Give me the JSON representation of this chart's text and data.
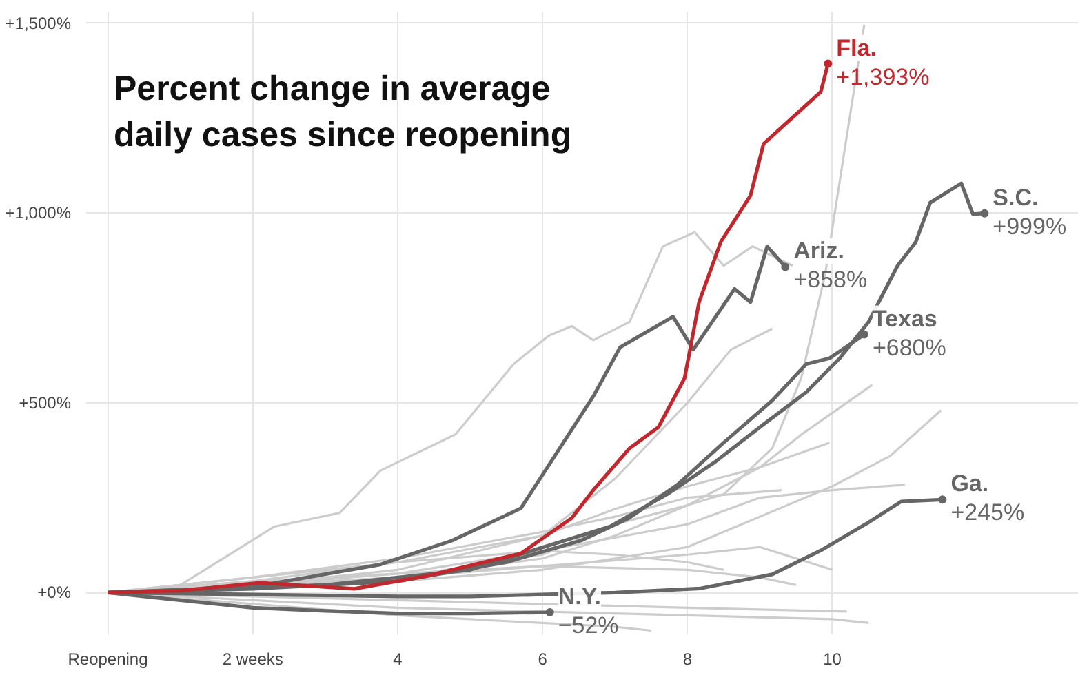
{
  "chart_data": {
    "type": "line",
    "title": "Percent change in average daily cases since reopening",
    "xlim": [
      -0.3,
      13.4
    ],
    "ylim": [
      -110,
      1530
    ],
    "xticks": [
      {
        "value": 0,
        "label": "Reopening"
      },
      {
        "value": 2,
        "label": "2 weeks"
      },
      4,
      6,
      8,
      10
    ],
    "yticks": [
      {
        "value": 0,
        "label": "+0%"
      },
      {
        "value": 500,
        "label": "+500%"
      },
      {
        "value": 1000,
        "label": "+1,000%"
      },
      {
        "value": 1500,
        "label": "+1,500%"
      }
    ],
    "grid": true,
    "series": [
      {
        "color": "#cccccc",
        "x": [
          0,
          1,
          2.3,
          3.2,
          3.76,
          4.8,
          5.6,
          6.08,
          6.4,
          6.7,
          7.2,
          7.66,
          8.1,
          8.5,
          8.9,
          9.45
        ],
        "values": [
          0,
          20,
          174,
          210,
          321,
          417,
          602,
          676,
          702,
          665,
          713,
          912,
          949,
          861,
          912,
          861
        ]
      },
      {
        "color": "#cccccc",
        "x": [
          0,
          2,
          4,
          6,
          7,
          8,
          8.5,
          9.17,
          9.57,
          9.9,
          10.44
        ],
        "values": [
          0,
          10,
          40,
          100,
          180,
          230,
          259,
          380,
          565,
          838,
          1496
        ]
      },
      {
        "color": "#cccccc",
        "x": [
          0,
          2,
          4,
          6,
          7,
          8,
          8.6,
          9.17
        ],
        "values": [
          0,
          20,
          60,
          150,
          300,
          500,
          640,
          695
        ]
      },
      {
        "color": "#cccccc",
        "x": [
          0,
          2,
          4,
          6,
          7,
          8,
          9,
          9.6,
          10.55
        ],
        "values": [
          0,
          15,
          40,
          90,
          150,
          230,
          330,
          420,
          547
        ]
      },
      {
        "color": "#cccccc",
        "x": [
          0,
          2,
          4,
          6,
          8,
          9,
          10,
          10.8,
          11.5
        ],
        "values": [
          0,
          10,
          30,
          60,
          120,
          200,
          280,
          360,
          480
        ]
      },
      {
        "color": "#cccccc",
        "x": [
          0,
          2,
          4,
          6,
          7,
          8,
          9,
          9.96
        ],
        "values": [
          0,
          30,
          80,
          150,
          220,
          280,
          330,
          395
        ]
      },
      {
        "color": "#cccccc",
        "x": [
          0,
          2,
          4,
          6,
          8,
          9,
          10,
          11.0
        ],
        "values": [
          0,
          20,
          50,
          110,
          180,
          250,
          270,
          284
        ]
      },
      {
        "color": "#cccccc",
        "x": [
          0,
          2,
          4,
          6,
          7,
          8,
          9.3
        ],
        "values": [
          0,
          40,
          90,
          160,
          200,
          250,
          270
        ]
      },
      {
        "color": "#cccccc",
        "x": [
          0,
          2,
          4,
          6,
          8,
          9,
          10
        ],
        "values": [
          0,
          20,
          40,
          70,
          100,
          120,
          60
        ]
      },
      {
        "color": "#cccccc",
        "x": [
          0,
          2,
          4,
          6,
          8,
          10,
          10.5
        ],
        "values": [
          0,
          -20,
          -40,
          -50,
          -60,
          -70,
          -80
        ]
      },
      {
        "color": "#cccccc",
        "x": [
          0,
          2,
          4,
          6,
          8,
          10.2
        ],
        "values": [
          0,
          -10,
          -20,
          -30,
          -40,
          -50
        ]
      },
      {
        "color": "#cccccc",
        "x": [
          0,
          2,
          4,
          6,
          8,
          9,
          9.5
        ],
        "values": [
          0,
          30,
          50,
          70,
          60,
          40,
          20
        ]
      },
      {
        "color": "#cccccc",
        "x": [
          0,
          2,
          4,
          6,
          7,
          8,
          8.5
        ],
        "values": [
          0,
          40,
          80,
          110,
          100,
          80,
          60
        ]
      },
      {
        "color": "#cccccc",
        "x": [
          0,
          2,
          4,
          6,
          7,
          7.5
        ],
        "values": [
          0,
          -30,
          -60,
          -80,
          -90,
          -100
        ]
      },
      {
        "name": "N.Y.",
        "color": "#666666",
        "x": [
          0,
          1,
          2,
          3,
          4,
          5,
          6.1
        ],
        "values": [
          0,
          -20,
          -40,
          -48,
          -55,
          -55,
          -52
        ],
        "value_labels": [
          null,
          null,
          null,
          null,
          null,
          null,
          "−52%"
        ]
      },
      {
        "name": "Ga.",
        "color": "#666666",
        "x": [
          0,
          2,
          4,
          5,
          6,
          7,
          8.18,
          9.17,
          9.84,
          10.5,
          10.95,
          11.52
        ],
        "values": [
          0,
          -5,
          -10,
          -10,
          -5,
          0,
          11,
          48,
          111,
          185,
          240,
          245
        ],
        "value_labels": [
          null,
          null,
          null,
          null,
          null,
          null,
          null,
          null,
          null,
          null,
          null,
          "+245%"
        ]
      },
      {
        "name": "Texas",
        "color": "#666666",
        "x": [
          0,
          2,
          4,
          5.5,
          6.53,
          7.19,
          7.86,
          8.5,
          9.17,
          9.64,
          9.96,
          10.44
        ],
        "values": [
          0,
          10,
          30,
          80,
          137,
          196,
          284,
          395,
          506,
          602,
          617,
          680
        ],
        "value_labels": [
          null,
          null,
          null,
          null,
          null,
          null,
          null,
          null,
          null,
          null,
          null,
          "+680%"
        ]
      },
      {
        "name": "S.C.",
        "color": "#666666",
        "x": [
          0,
          3,
          5,
          6.93,
          7.72,
          8.38,
          9.05,
          9.64,
          10.1,
          10.5,
          10.9,
          11.15,
          11.35,
          11.78,
          11.94,
          12.1
        ],
        "values": [
          0,
          20,
          60,
          174,
          259,
          344,
          443,
          528,
          617,
          713,
          861,
          923,
          1027,
          1078,
          997,
          999
        ],
        "value_labels": [
          null,
          null,
          null,
          null,
          null,
          null,
          null,
          null,
          null,
          null,
          null,
          null,
          null,
          null,
          null,
          "+999%"
        ]
      },
      {
        "name": "Ariz.",
        "color": "#666666",
        "x": [
          0,
          2,
          3.76,
          4.75,
          5.7,
          6.7,
          7.07,
          7.8,
          8.08,
          8.65,
          8.87,
          9.1,
          9.35
        ],
        "values": [
          0,
          15,
          74,
          137,
          222,
          517,
          646,
          727,
          640,
          800,
          765,
          912,
          858
        ],
        "value_labels": [
          null,
          null,
          null,
          null,
          null,
          null,
          null,
          null,
          null,
          null,
          null,
          null,
          "+858%"
        ]
      },
      {
        "name": "Fla.",
        "color": "#c1272d",
        "x": [
          0,
          1,
          2.1,
          3.4,
          4.4,
          5.7,
          6.4,
          6.7,
          7.2,
          7.6,
          7.96,
          8.16,
          8.46,
          8.87,
          9.05,
          9.54,
          9.84,
          9.94
        ],
        "values": [
          0,
          5,
          26,
          10,
          44,
          103,
          196,
          270,
          380,
          436,
          565,
          765,
          924,
          1046,
          1182,
          1267,
          1319,
          1393
        ],
        "value_labels": [
          null,
          null,
          null,
          null,
          null,
          null,
          null,
          null,
          null,
          null,
          null,
          null,
          null,
          null,
          null,
          null,
          null,
          "+1,393%"
        ]
      }
    ]
  }
}
